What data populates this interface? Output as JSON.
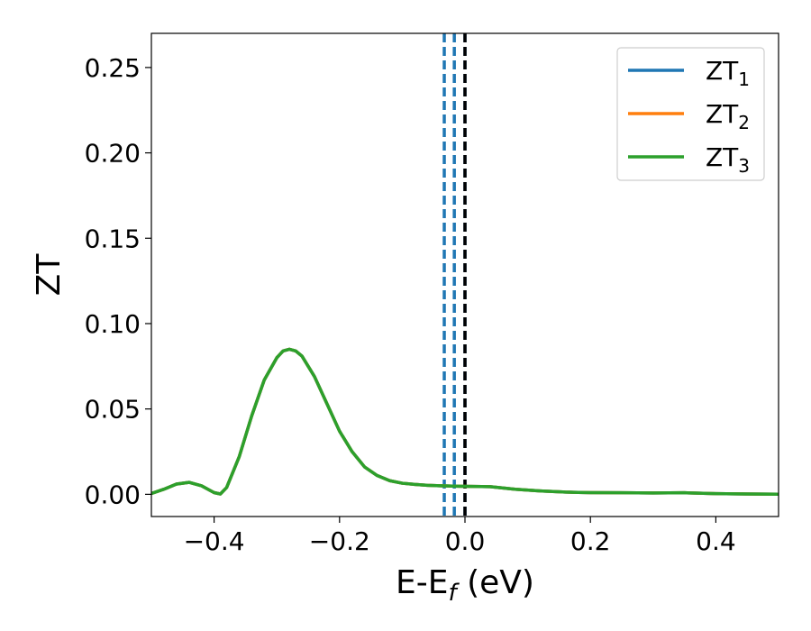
{
  "chart_data": {
    "type": "line",
    "xlabel": "E-E",
    "xlabel_sub": "f",
    "xlabel_unit": " (eV)",
    "ylabel": "ZT",
    "xlim": [
      -0.5,
      0.5
    ],
    "ylim": [
      -0.013,
      0.27
    ],
    "xticks": [
      -0.4,
      -0.2,
      0.0,
      0.2,
      0.4
    ],
    "xtick_labels": [
      "−0.4",
      "−0.2",
      "0.0",
      "0.2",
      "0.4"
    ],
    "yticks": [
      0.0,
      0.05,
      0.1,
      0.15,
      0.2,
      0.25
    ],
    "ytick_labels": [
      "0.00",
      "0.05",
      "0.10",
      "0.15",
      "0.20",
      "0.25"
    ],
    "legend_position": "top-right",
    "grid": false,
    "series": [
      {
        "name": "ZT",
        "sub": "1",
        "color": "#1f77b4",
        "x": [
          -0.5,
          -0.48,
          -0.46,
          -0.44,
          -0.42,
          -0.4,
          -0.39,
          -0.38,
          -0.36,
          -0.34,
          -0.32,
          -0.3,
          -0.29,
          -0.28,
          -0.27,
          -0.26,
          -0.24,
          -0.22,
          -0.2,
          -0.18,
          -0.16,
          -0.14,
          -0.12,
          -0.1,
          -0.08,
          -0.06,
          -0.04,
          -0.02,
          0.0,
          0.04,
          0.08,
          0.12,
          0.16,
          0.2,
          0.25,
          0.3,
          0.35,
          0.4,
          0.45,
          0.5
        ],
        "y": [
          0.0005,
          0.003,
          0.006,
          0.007,
          0.005,
          0.001,
          0.0002,
          0.004,
          0.022,
          0.046,
          0.067,
          0.08,
          0.084,
          0.085,
          0.084,
          0.081,
          0.069,
          0.053,
          0.037,
          0.025,
          0.016,
          0.011,
          0.008,
          0.0065,
          0.0058,
          0.0053,
          0.005,
          0.0048,
          0.0047,
          0.0045,
          0.003,
          0.002,
          0.0013,
          0.001,
          0.0009,
          0.0008,
          0.0009,
          0.0004,
          0.0002,
          0.0001
        ]
      },
      {
        "name": "ZT",
        "sub": "2",
        "color": "#ff7f0e",
        "x": [
          -0.5,
          -0.48,
          -0.46,
          -0.44,
          -0.42,
          -0.4,
          -0.39,
          -0.38,
          -0.36,
          -0.34,
          -0.32,
          -0.3,
          -0.29,
          -0.28,
          -0.27,
          -0.26,
          -0.24,
          -0.22,
          -0.2,
          -0.18,
          -0.16,
          -0.14,
          -0.12,
          -0.1,
          -0.08,
          -0.06,
          -0.04,
          -0.02,
          0.0,
          0.04,
          0.08,
          0.12,
          0.16,
          0.2,
          0.25,
          0.3,
          0.35,
          0.4,
          0.45,
          0.5
        ],
        "y": [
          0.0005,
          0.003,
          0.006,
          0.007,
          0.005,
          0.001,
          0.0002,
          0.004,
          0.022,
          0.046,
          0.067,
          0.08,
          0.084,
          0.085,
          0.084,
          0.081,
          0.069,
          0.053,
          0.037,
          0.025,
          0.016,
          0.011,
          0.008,
          0.0065,
          0.0058,
          0.0053,
          0.005,
          0.0048,
          0.0047,
          0.0045,
          0.003,
          0.002,
          0.0013,
          0.001,
          0.0009,
          0.0008,
          0.0009,
          0.0004,
          0.0002,
          0.0001
        ]
      },
      {
        "name": "ZT",
        "sub": "3",
        "color": "#2ca02c",
        "x": [
          -0.5,
          -0.48,
          -0.46,
          -0.44,
          -0.42,
          -0.4,
          -0.39,
          -0.38,
          -0.36,
          -0.34,
          -0.32,
          -0.3,
          -0.29,
          -0.28,
          -0.27,
          -0.26,
          -0.24,
          -0.22,
          -0.2,
          -0.18,
          -0.16,
          -0.14,
          -0.12,
          -0.1,
          -0.08,
          -0.06,
          -0.04,
          -0.02,
          0.0,
          0.04,
          0.08,
          0.12,
          0.16,
          0.2,
          0.25,
          0.3,
          0.35,
          0.4,
          0.45,
          0.5
        ],
        "y": [
          0.0005,
          0.003,
          0.006,
          0.007,
          0.005,
          0.001,
          0.0002,
          0.004,
          0.022,
          0.046,
          0.067,
          0.08,
          0.084,
          0.085,
          0.084,
          0.081,
          0.069,
          0.053,
          0.037,
          0.025,
          0.016,
          0.011,
          0.008,
          0.0065,
          0.0058,
          0.0053,
          0.005,
          0.0048,
          0.0047,
          0.0045,
          0.003,
          0.002,
          0.0013,
          0.001,
          0.0009,
          0.0008,
          0.0009,
          0.0004,
          0.0002,
          0.0001
        ]
      }
    ],
    "vlines": [
      {
        "x": -0.033,
        "color": "#1f77b4",
        "style": "dashed"
      },
      {
        "x": -0.017,
        "color": "#1f77b4",
        "style": "dashed"
      },
      {
        "x": 0.0,
        "color": "#1f77b4",
        "style": "dashed"
      },
      {
        "x": 0.0,
        "color": "#000000",
        "style": "dashed"
      }
    ]
  }
}
